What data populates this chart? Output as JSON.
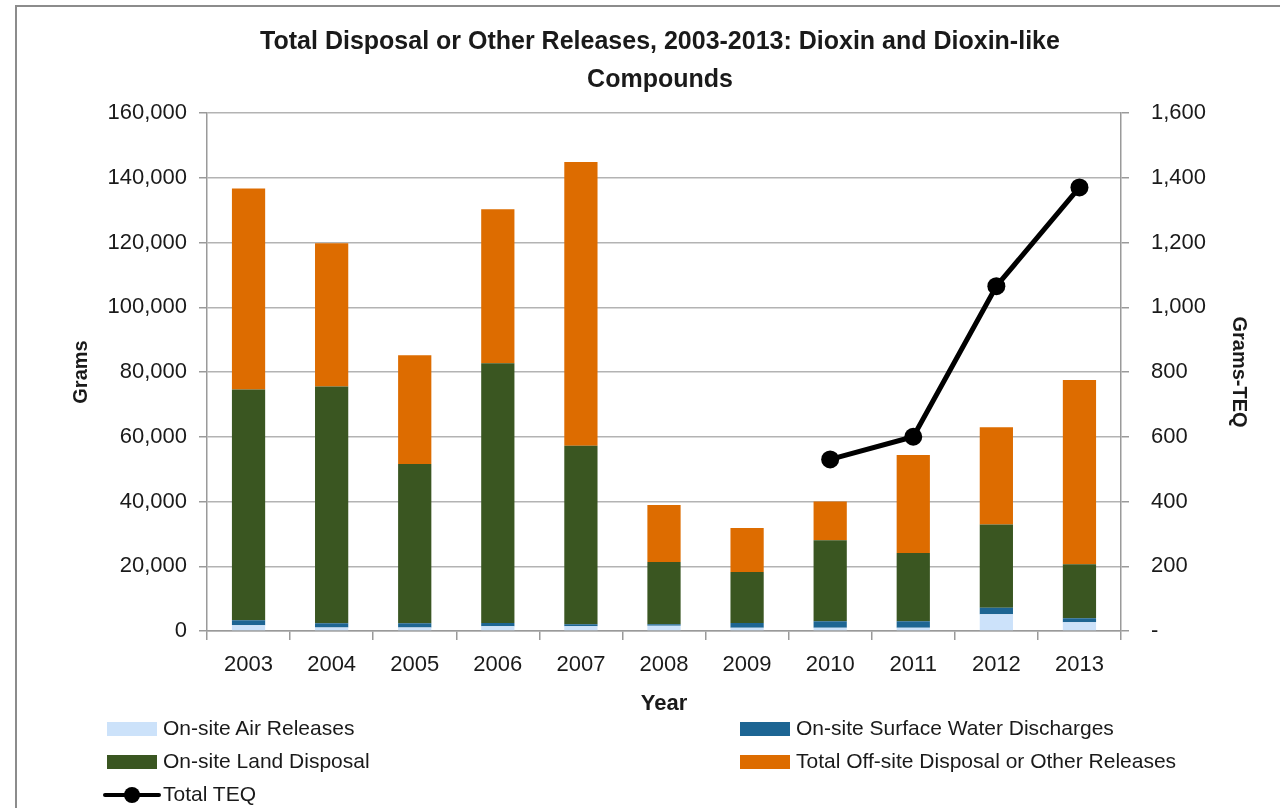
{
  "chart_data": {
    "type": "bar",
    "title": "Total Disposal or Other Releases, 2003-2013: Dioxin and Dioxin-like Compounds",
    "xlabel": "Year",
    "ylabel": "Grams",
    "y2label": "Grams-TEQ",
    "categories": [
      "2003",
      "2004",
      "2005",
      "2006",
      "2007",
      "2008",
      "2009",
      "2010",
      "2011",
      "2012",
      "2013"
    ],
    "stacked": true,
    "grid": "y",
    "legend": "bottom",
    "ylim": [
      0,
      160000
    ],
    "yticks": [
      0,
      {
        "value": 20000,
        "label": "20,000"
      },
      {
        "value": 40000,
        "label": "40,000"
      },
      {
        "value": 60000,
        "label": "60,000"
      },
      {
        "value": 80000,
        "label": "80,000"
      },
      {
        "value": 100000,
        "label": "100,000"
      },
      {
        "value": 120000,
        "label": "120,000"
      },
      {
        "value": 140000,
        "label": "140,000"
      },
      {
        "value": 160000,
        "label": "160,000"
      }
    ],
    "y2lim": [
      0,
      1600
    ],
    "y2ticks": [
      {
        "value": 0,
        "label": "-"
      },
      200,
      400,
      600,
      800,
      {
        "value": 1000,
        "label": "1,000"
      },
      {
        "value": 1200,
        "label": "1,200"
      },
      {
        "value": 1400,
        "label": "1,400"
      },
      {
        "value": 1600,
        "label": "1,600"
      }
    ],
    "series": [
      {
        "name": "On-site Air Releases",
        "color": "#cce2fa",
        "values": [
          1800,
          1100,
          1100,
          1500,
          1500,
          1600,
          1000,
          1000,
          1000,
          5200,
          2700
        ]
      },
      {
        "name": "On-site Surface Water Discharges",
        "color": "#1d6593",
        "values": [
          1500,
          1300,
          1300,
          1000,
          600,
          500,
          1500,
          2000,
          2000,
          2000,
          1200
        ]
      },
      {
        "name": "On-site Land Disposal",
        "color": "#3a5621",
        "values": [
          71300,
          73100,
          49200,
          80200,
          55100,
          19200,
          15700,
          25000,
          21100,
          25700,
          16700
        ]
      },
      {
        "name": "Total Off-site Disposal or Other Releases",
        "color": "#dd6c00",
        "values": [
          62100,
          44300,
          33600,
          47600,
          87700,
          17600,
          13600,
          12000,
          30300,
          30000,
          56900
        ]
      },
      {
        "name": "Total TEQ",
        "type": "line",
        "axis": "y2",
        "marker": "circle",
        "color": "#000000",
        "values": [
          null,
          null,
          null,
          null,
          null,
          null,
          null,
          530,
          600,
          1065,
          1370
        ]
      }
    ]
  }
}
